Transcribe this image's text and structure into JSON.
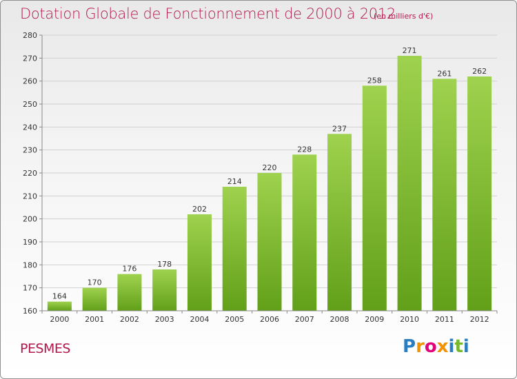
{
  "title": "Dotation Globale de Fonctionnement de 2000 à 2012",
  "subtitle": "(en milliers d'€)",
  "commune": "PESMES",
  "logo_text": "Proxiti",
  "logo_letters": [
    {
      "ch": "P",
      "color": "#2a7dc1"
    },
    {
      "ch": "r",
      "color": "#f39200"
    },
    {
      "ch": "o",
      "color": "#e2007a"
    },
    {
      "ch": "x",
      "color": "#f39200"
    },
    {
      "ch": "i",
      "color": "#2a7dc1"
    },
    {
      "ch": "t",
      "color": "#76b82a"
    },
    {
      "ch": "i",
      "color": "#2a7dc1"
    }
  ],
  "colors": {
    "accent": "#b2194a",
    "bar_top": "#9fd24e",
    "bar_bottom": "#62a01a",
    "grid": "#d0d0d0",
    "axis_text": "#333333"
  },
  "chart_data": {
    "type": "bar",
    "categories": [
      "2000",
      "2001",
      "2002",
      "2003",
      "2004",
      "2005",
      "2006",
      "2007",
      "2008",
      "2009",
      "2010",
      "2011",
      "2012"
    ],
    "values": [
      164,
      170,
      176,
      178,
      202,
      214,
      220,
      228,
      237,
      258,
      271,
      261,
      262
    ],
    "yticks": [
      160,
      170,
      180,
      190,
      200,
      210,
      220,
      230,
      240,
      250,
      260,
      270,
      280
    ],
    "ylim": [
      160,
      280
    ],
    "grid": true,
    "legend": "none"
  }
}
